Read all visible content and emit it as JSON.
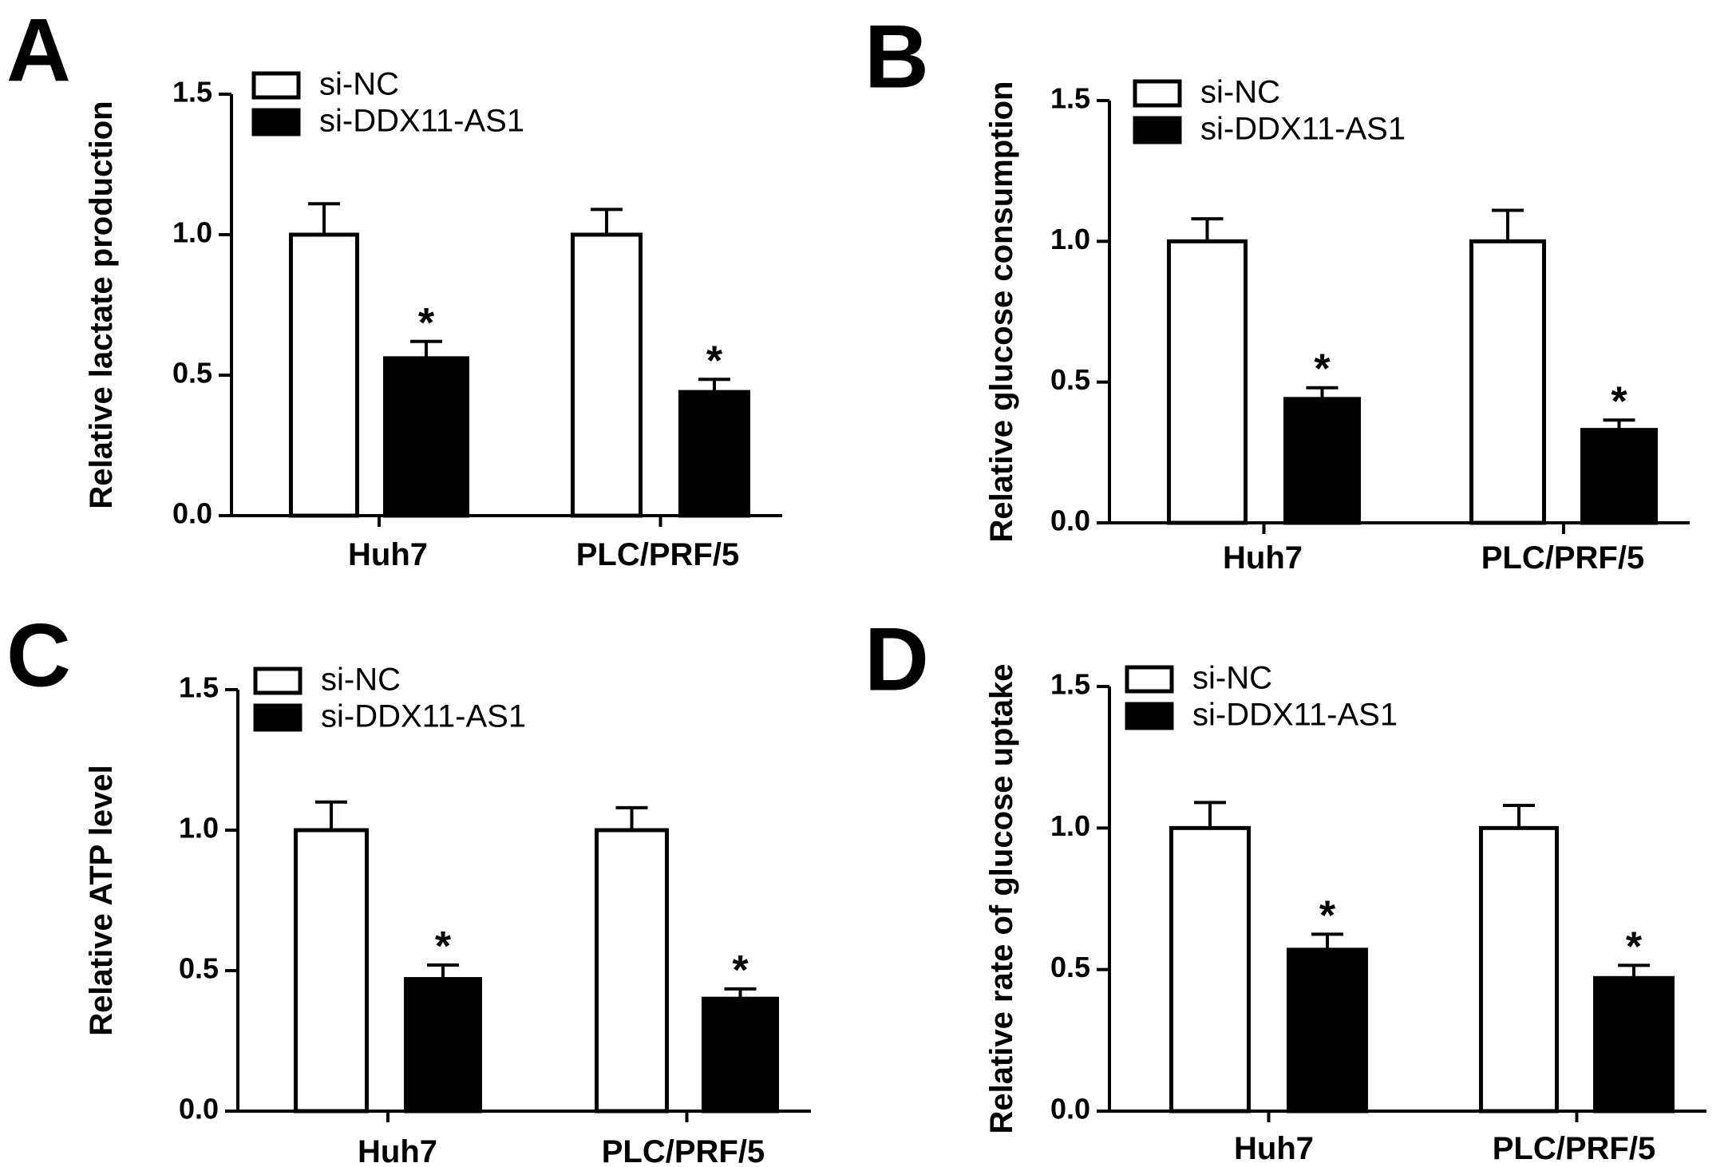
{
  "legend": {
    "series": [
      "si-NC",
      "si-DDX11-AS1"
    ]
  },
  "colors": {
    "si-NC": "#ffffff",
    "si-DDX11-AS1": "#000000",
    "stroke": "#000000"
  },
  "chart_data": [
    {
      "panel": "A",
      "type": "bar",
      "ylabel": "Relative lactate production",
      "ylim": [
        0,
        1.5
      ],
      "yticks": [
        "0.0",
        "0.5",
        "1.0",
        "1.5"
      ],
      "categories": [
        "Huh7",
        "PLC/PRF/5"
      ],
      "series": [
        {
          "name": "si-NC",
          "values": [
            1.0,
            1.0
          ],
          "errors": [
            0.11,
            0.09
          ]
        },
        {
          "name": "si-DDX11-AS1",
          "values": [
            0.56,
            0.44
          ],
          "errors": [
            0.06,
            0.045
          ],
          "annotations": [
            "*",
            "*"
          ]
        }
      ],
      "legend_position": "top-left",
      "grid": false
    },
    {
      "panel": "B",
      "type": "bar",
      "ylabel": "Relative glucose consumption",
      "ylim": [
        0,
        1.5
      ],
      "yticks": [
        "0.0",
        "0.5",
        "1.0",
        "1.5"
      ],
      "categories": [
        "Huh7",
        "PLC/PRF/5"
      ],
      "series": [
        {
          "name": "si-NC",
          "values": [
            1.0,
            1.0
          ],
          "errors": [
            0.08,
            0.11
          ]
        },
        {
          "name": "si-DDX11-AS1",
          "values": [
            0.44,
            0.33
          ],
          "errors": [
            0.04,
            0.035
          ],
          "annotations": [
            "*",
            "*"
          ]
        }
      ],
      "legend_position": "top-left",
      "grid": false
    },
    {
      "panel": "C",
      "type": "bar",
      "ylabel": "Relative ATP level",
      "ylim": [
        0,
        1.5
      ],
      "yticks": [
        "0.0",
        "0.5",
        "1.0",
        "1.5"
      ],
      "categories": [
        "Huh7",
        "PLC/PRF/5"
      ],
      "series": [
        {
          "name": "si-NC",
          "values": [
            1.0,
            1.0
          ],
          "errors": [
            0.1,
            0.08
          ]
        },
        {
          "name": "si-DDX11-AS1",
          "values": [
            0.47,
            0.4
          ],
          "errors": [
            0.05,
            0.035
          ],
          "annotations": [
            "*",
            "*"
          ]
        }
      ],
      "legend_position": "top-left",
      "grid": false
    },
    {
      "panel": "D",
      "type": "bar",
      "ylabel": "Relative rate of glucose uptake",
      "ylim": [
        0,
        1.5
      ],
      "yticks": [
        "0.0",
        "0.5",
        "1.0",
        "1.5"
      ],
      "categories": [
        "Huh7",
        "PLC/PRF/5"
      ],
      "series": [
        {
          "name": "si-NC",
          "values": [
            1.0,
            1.0
          ],
          "errors": [
            0.09,
            0.08
          ]
        },
        {
          "name": "si-DDX11-AS1",
          "values": [
            0.57,
            0.47
          ],
          "errors": [
            0.055,
            0.045
          ],
          "annotations": [
            "*",
            "*"
          ]
        }
      ],
      "legend_position": "top-left",
      "grid": false
    }
  ]
}
